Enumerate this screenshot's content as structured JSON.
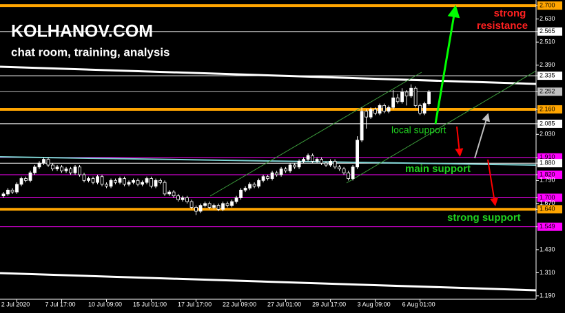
{
  "chart_data": {
    "type": "candlestick",
    "title": "KOLHANOV.COM",
    "subtitle": "chat room, training, analysis",
    "annotations": [
      "strong",
      "resistance",
      "local support",
      "main support",
      "strong support"
    ],
    "up_color": "#ffffff",
    "down_color": "#000000",
    "wick_color": "#ffffff",
    "xlim": [
      -0.77,
      118.9
    ],
    "ylim": [
      1.172,
      2.729
    ],
    "xticks": [
      {
        "value": 3,
        "label": "2 Jul 2020"
      },
      {
        "value": 13,
        "label": "7 Jul 17:00"
      },
      {
        "value": 23,
        "label": "10 Jul 09:00"
      },
      {
        "value": 33,
        "label": "15 Jul 01:00"
      },
      {
        "value": 43,
        "label": "17 Jul 17:00"
      },
      {
        "value": 53,
        "label": "22 Jul 09:00"
      },
      {
        "value": 63,
        "label": "27 Jul 01:00"
      },
      {
        "value": 73,
        "label": "29 Jul 17:00"
      },
      {
        "value": 83,
        "label": "3 Aug 09:00"
      },
      {
        "value": 93,
        "label": "6 Aug 01:00"
      }
    ],
    "yticks": [
      {
        "value": 2.7,
        "label": "2.700"
      },
      {
        "value": 2.63,
        "label": "2.630"
      },
      {
        "value": 2.565,
        "label": "2.565"
      },
      {
        "value": 2.51,
        "label": "2.510"
      },
      {
        "value": 2.39,
        "label": "2.390"
      },
      {
        "value": 2.335,
        "label": "2.335"
      },
      {
        "value": 2.252,
        "label": "2.252"
      },
      {
        "value": 2.16,
        "label": "2.160"
      },
      {
        "value": 2.085,
        "label": "2.085"
      },
      {
        "value": 2.03,
        "label": "2.030"
      },
      {
        "value": 1.91,
        "label": "1.910"
      },
      {
        "value": 1.88,
        "label": "1.880"
      },
      {
        "value": 1.82,
        "label": "1.820"
      },
      {
        "value": 1.79,
        "label": "1.790"
      },
      {
        "value": 1.7,
        "label": "1.700"
      },
      {
        "value": 1.67,
        "label": "1.670"
      },
      {
        "value": 1.64,
        "label": "1.640"
      },
      {
        "value": 1.549,
        "label": "1.549"
      },
      {
        "value": 1.43,
        "label": "1.430"
      },
      {
        "value": 1.31,
        "label": "1.310"
      },
      {
        "value": 1.19,
        "label": "1.190"
      }
    ],
    "levels": [
      {
        "value": 2.7,
        "color": "#ffa500",
        "width": 4
      },
      {
        "value": 2.565,
        "color": "#ffffff",
        "width": 1
      },
      {
        "value": 2.335,
        "color": "#ffffff",
        "width": 1
      },
      {
        "value": 2.252,
        "color": "#c0c0c0",
        "width": 1
      },
      {
        "value": 2.16,
        "color": "#ffa500",
        "width": 4
      },
      {
        "value": 2.085,
        "color": "#ffffff",
        "width": 1
      },
      {
        "value": 1.91,
        "color": "#ff00ff",
        "width": 1
      },
      {
        "value": 1.88,
        "color": "#ffffff",
        "width": 1
      },
      {
        "value": 1.82,
        "color": "#ff00ff",
        "width": 1
      },
      {
        "value": 1.7,
        "color": "#ff00ff",
        "width": 1
      },
      {
        "value": 1.64,
        "color": "#ffa500",
        "width": 4
      },
      {
        "value": 1.549,
        "color": "#ff00ff",
        "width": 1
      }
    ],
    "open": [
      1.71,
      1.72,
      1.74,
      1.73,
      1.77,
      1.8,
      1.79,
      1.83,
      1.86,
      1.88,
      1.9,
      1.87,
      1.85,
      1.86,
      1.84,
      1.85,
      1.83,
      1.86,
      1.82,
      1.79,
      1.8,
      1.78,
      1.81,
      1.77,
      1.76,
      1.79,
      1.78,
      1.8,
      1.77,
      1.78,
      1.79,
      1.77,
      1.78,
      1.8,
      1.76,
      1.79,
      1.78,
      1.72,
      1.73,
      1.71,
      1.69,
      1.7,
      1.68,
      1.65,
      1.63,
      1.66,
      1.67,
      1.65,
      1.66,
      1.64,
      1.67,
      1.66,
      1.68,
      1.7,
      1.74,
      1.75,
      1.77,
      1.76,
      1.79,
      1.81,
      1.8,
      1.83,
      1.82,
      1.85,
      1.84,
      1.87,
      1.86,
      1.89,
      1.9,
      1.92,
      1.89,
      1.9,
      1.88,
      1.87,
      1.89,
      1.86,
      1.85,
      1.83,
      1.8,
      1.86,
      2.0,
      2.15,
      2.12,
      2.16,
      2.14,
      2.18,
      2.15,
      2.17,
      2.22,
      2.2,
      2.25,
      2.23,
      2.27,
      2.18,
      2.14,
      2.19
    ],
    "high": [
      1.73,
      1.75,
      1.75,
      1.78,
      1.81,
      1.81,
      1.84,
      1.87,
      1.89,
      1.91,
      1.91,
      1.88,
      1.87,
      1.87,
      1.86,
      1.86,
      1.87,
      1.87,
      1.83,
      1.81,
      1.81,
      1.82,
      1.82,
      1.78,
      1.8,
      1.8,
      1.81,
      1.81,
      1.79,
      1.8,
      1.8,
      1.79,
      1.81,
      1.81,
      1.8,
      1.8,
      1.79,
      1.74,
      1.74,
      1.72,
      1.71,
      1.71,
      1.69,
      1.66,
      1.67,
      1.68,
      1.68,
      1.67,
      1.67,
      1.68,
      1.68,
      1.69,
      1.71,
      1.75,
      1.76,
      1.78,
      1.78,
      1.8,
      1.82,
      1.82,
      1.84,
      1.84,
      1.86,
      1.86,
      1.88,
      1.88,
      1.9,
      1.91,
      1.93,
      1.93,
      1.91,
      1.91,
      1.89,
      1.9,
      1.9,
      1.87,
      1.86,
      1.84,
      1.87,
      2.02,
      2.17,
      2.16,
      2.17,
      2.17,
      2.19,
      2.19,
      2.18,
      2.26,
      2.24,
      2.27,
      2.26,
      2.29,
      2.28,
      2.19,
      2.2,
      2.26
    ],
    "low": [
      1.7,
      1.71,
      1.72,
      1.72,
      1.76,
      1.78,
      1.78,
      1.82,
      1.85,
      1.87,
      1.86,
      1.84,
      1.84,
      1.83,
      1.83,
      1.82,
      1.82,
      1.81,
      1.78,
      1.78,
      1.77,
      1.77,
      1.76,
      1.75,
      1.75,
      1.77,
      1.77,
      1.76,
      1.76,
      1.77,
      1.76,
      1.76,
      1.77,
      1.75,
      1.75,
      1.77,
      1.71,
      1.71,
      1.7,
      1.68,
      1.68,
      1.67,
      1.64,
      1.61,
      1.62,
      1.65,
      1.64,
      1.64,
      1.63,
      1.63,
      1.65,
      1.65,
      1.67,
      1.69,
      1.73,
      1.74,
      1.75,
      1.75,
      1.78,
      1.79,
      1.79,
      1.81,
      1.81,
      1.83,
      1.83,
      1.85,
      1.85,
      1.88,
      1.89,
      1.88,
      1.88,
      1.87,
      1.86,
      1.86,
      1.85,
      1.84,
      1.82,
      1.79,
      1.79,
      1.85,
      1.99,
      2.06,
      2.11,
      2.13,
      2.13,
      2.14,
      2.14,
      2.16,
      2.19,
      2.19,
      2.18,
      2.22,
      2.17,
      2.13,
      2.13,
      2.18
    ],
    "close": [
      1.72,
      1.74,
      1.73,
      1.77,
      1.8,
      1.79,
      1.83,
      1.86,
      1.88,
      1.9,
      1.87,
      1.85,
      1.86,
      1.84,
      1.85,
      1.83,
      1.86,
      1.82,
      1.79,
      1.8,
      1.78,
      1.81,
      1.77,
      1.76,
      1.79,
      1.78,
      1.8,
      1.77,
      1.78,
      1.79,
      1.77,
      1.78,
      1.8,
      1.76,
      1.79,
      1.78,
      1.72,
      1.73,
      1.71,
      1.69,
      1.7,
      1.68,
      1.65,
      1.63,
      1.66,
      1.67,
      1.65,
      1.66,
      1.64,
      1.67,
      1.66,
      1.68,
      1.7,
      1.74,
      1.75,
      1.77,
      1.76,
      1.79,
      1.81,
      1.8,
      1.83,
      1.82,
      1.85,
      1.84,
      1.87,
      1.86,
      1.89,
      1.9,
      1.92,
      1.89,
      1.9,
      1.88,
      1.87,
      1.89,
      1.86,
      1.85,
      1.83,
      1.8,
      1.86,
      2.0,
      2.15,
      2.12,
      2.16,
      2.14,
      2.18,
      2.15,
      2.17,
      2.22,
      2.2,
      2.25,
      2.23,
      2.27,
      2.18,
      2.14,
      2.19,
      2.25
    ]
  }
}
